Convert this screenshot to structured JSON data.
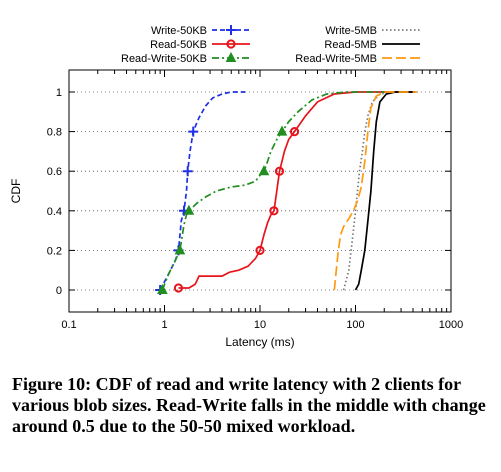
{
  "chart_data": {
    "type": "line",
    "xlabel": "Latency (ms)",
    "ylabel": "CDF",
    "xscale": "log",
    "xlim": [
      0.1,
      1000
    ],
    "ylim": [
      0,
      1
    ],
    "xticks": [
      0.1,
      1,
      10,
      100,
      1000
    ],
    "xtick_labels": [
      "0.1",
      "1",
      "10",
      "100",
      "1000"
    ],
    "yticks": [
      0,
      0.2,
      0.4,
      0.6,
      0.8,
      1
    ],
    "ytick_labels": [
      "0",
      "0.2",
      "0.4",
      "0.6",
      "0.8",
      "1"
    ],
    "grid": "horizontal dotted",
    "legend": "top, two columns",
    "series": [
      {
        "name": "Write-50KB",
        "color": "#1f2fe6",
        "dash": "dash",
        "marker": "plus",
        "points": [
          [
            0.9,
            0
          ],
          [
            1.1,
            0.08
          ],
          [
            1.3,
            0.15
          ],
          [
            1.4,
            0.2
          ],
          [
            1.5,
            0.35
          ],
          [
            1.6,
            0.4
          ],
          [
            1.7,
            0.5
          ],
          [
            1.75,
            0.6
          ],
          [
            1.85,
            0.7
          ],
          [
            2,
            0.8
          ],
          [
            2.3,
            0.87
          ],
          [
            2.7,
            0.93
          ],
          [
            3.2,
            0.97
          ],
          [
            4,
            0.99
          ],
          [
            5,
            1
          ],
          [
            7,
            1
          ]
        ],
        "markers": [
          [
            0.9,
            0
          ],
          [
            1.4,
            0.2
          ],
          [
            1.6,
            0.4
          ],
          [
            1.75,
            0.6
          ],
          [
            2,
            0.8
          ]
        ]
      },
      {
        "name": "Read-50KB",
        "color": "#e8141c",
        "dash": "solid",
        "marker": "circle",
        "points": [
          [
            1.4,
            0.01
          ],
          [
            1.8,
            0.01
          ],
          [
            2.1,
            0.03
          ],
          [
            2.3,
            0.07
          ],
          [
            4,
            0.07
          ],
          [
            4.8,
            0.09
          ],
          [
            6,
            0.1
          ],
          [
            7.5,
            0.12
          ],
          [
            9,
            0.16
          ],
          [
            10,
            0.2
          ],
          [
            11,
            0.28
          ],
          [
            12,
            0.34
          ],
          [
            13,
            0.38
          ],
          [
            14,
            0.4
          ],
          [
            15,
            0.5
          ],
          [
            16,
            0.6
          ],
          [
            17,
            0.65
          ],
          [
            18,
            0.7
          ],
          [
            20,
            0.76
          ],
          [
            23,
            0.8
          ],
          [
            30,
            0.88
          ],
          [
            40,
            0.95
          ],
          [
            60,
            0.99
          ],
          [
            100,
            1
          ],
          [
            400,
            1
          ]
        ],
        "markers": [
          [
            1.4,
            0.01
          ],
          [
            10,
            0.2
          ],
          [
            14,
            0.4
          ],
          [
            16,
            0.6
          ],
          [
            23,
            0.8
          ]
        ]
      },
      {
        "name": "Read-Write-50KB",
        "color": "#208f20",
        "dash": "dashdot",
        "marker": "triangle",
        "points": [
          [
            0.95,
            0
          ],
          [
            1.1,
            0.08
          ],
          [
            1.3,
            0.15
          ],
          [
            1.45,
            0.2
          ],
          [
            1.6,
            0.33
          ],
          [
            1.7,
            0.38
          ],
          [
            1.8,
            0.4
          ],
          [
            2.2,
            0.44
          ],
          [
            2.7,
            0.47
          ],
          [
            3.5,
            0.5
          ],
          [
            5,
            0.52
          ],
          [
            7,
            0.53
          ],
          [
            9,
            0.55
          ],
          [
            10,
            0.58
          ],
          [
            11,
            0.6
          ],
          [
            12,
            0.65
          ],
          [
            13,
            0.7
          ],
          [
            15,
            0.76
          ],
          [
            17,
            0.8
          ],
          [
            20,
            0.85
          ],
          [
            25,
            0.9
          ],
          [
            35,
            0.96
          ],
          [
            50,
            0.99
          ],
          [
            80,
            1
          ],
          [
            200,
            1
          ]
        ],
        "markers": [
          [
            0.95,
            0
          ],
          [
            1.45,
            0.2
          ],
          [
            1.8,
            0.4
          ],
          [
            11,
            0.6
          ],
          [
            17,
            0.8
          ]
        ]
      },
      {
        "name": "Write-5MB",
        "color": "#777777",
        "dash": "dot",
        "marker": "none",
        "points": [
          [
            75,
            0
          ],
          [
            80,
            0.05
          ],
          [
            85,
            0.1
          ],
          [
            90,
            0.2
          ],
          [
            95,
            0.3
          ],
          [
            100,
            0.4
          ],
          [
            105,
            0.5
          ],
          [
            110,
            0.6
          ],
          [
            118,
            0.7
          ],
          [
            125,
            0.8
          ],
          [
            135,
            0.88
          ],
          [
            150,
            0.95
          ],
          [
            180,
            0.99
          ],
          [
            250,
            1
          ],
          [
            450,
            1
          ]
        ],
        "markers": []
      },
      {
        "name": "Read-5MB",
        "color": "#000000",
        "dash": "solid",
        "marker": "none",
        "points": [
          [
            100,
            0
          ],
          [
            108,
            0.03
          ],
          [
            115,
            0.1
          ],
          [
            125,
            0.2
          ],
          [
            135,
            0.35
          ],
          [
            145,
            0.5
          ],
          [
            155,
            0.7
          ],
          [
            165,
            0.85
          ],
          [
            180,
            0.95
          ],
          [
            210,
            0.99
          ],
          [
            260,
            1
          ],
          [
            420,
            1
          ]
        ],
        "markers": []
      },
      {
        "name": "Read-Write-5MB",
        "color": "#ff9a10",
        "dash": "longdash",
        "marker": "none",
        "points": [
          [
            60,
            0
          ],
          [
            63,
            0.1
          ],
          [
            66,
            0.2
          ],
          [
            70,
            0.28
          ],
          [
            75,
            0.32
          ],
          [
            85,
            0.36
          ],
          [
            95,
            0.4
          ],
          [
            105,
            0.45
          ],
          [
            115,
            0.52
          ],
          [
            125,
            0.65
          ],
          [
            135,
            0.8
          ],
          [
            145,
            0.92
          ],
          [
            165,
            0.98
          ],
          [
            200,
            1
          ],
          [
            440,
            1
          ]
        ],
        "markers": []
      }
    ]
  },
  "caption": "Figure 10: CDF of read and write latency with 2 clients for various blob sizes. Read-Write falls in the middle with change around 0.5 due to the 50-50 mixed workload."
}
